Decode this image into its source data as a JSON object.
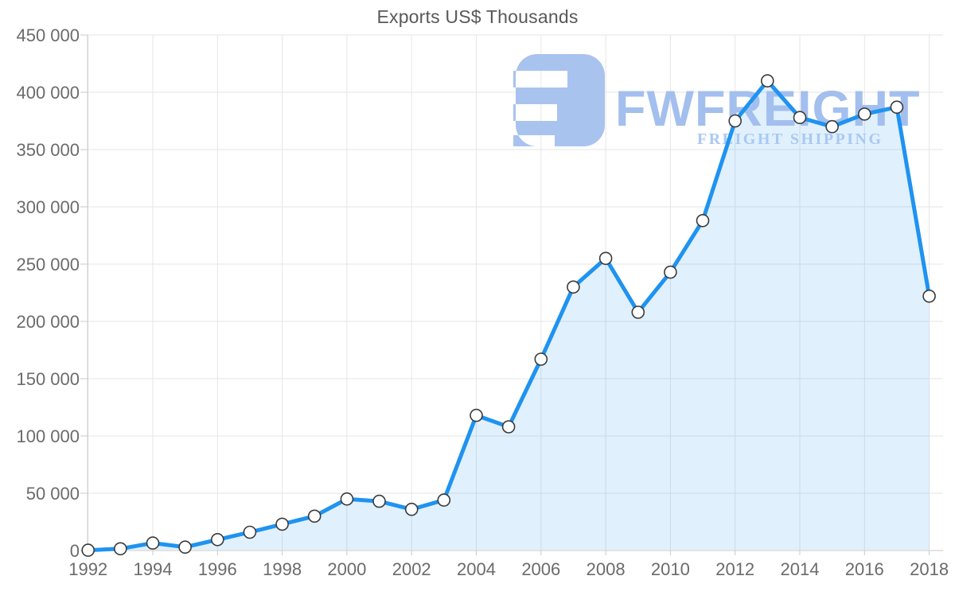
{
  "title": "Exports US$ Thousands",
  "watermark": {
    "wordmark": "FWFREIGHT",
    "tagline": "FREIGHT SHIPPING",
    "icon": "fwfreight-logo-mark",
    "mark_color": "#a9c3ef",
    "wordmark_color": "#a3bfee",
    "tagline_color": "#a9c9f3"
  },
  "chart_data": {
    "type": "area",
    "title": "Exports US$ Thousands",
    "series_name": "Exports US$ Thousands",
    "x": [
      1992,
      1993,
      1994,
      1995,
      1996,
      1997,
      1998,
      1999,
      2000,
      2001,
      2002,
      2003,
      2004,
      2005,
      2006,
      2007,
      2008,
      2009,
      2010,
      2011,
      2012,
      2013,
      2014,
      2015,
      2016,
      2017,
      2018
    ],
    "values": [
      300,
      1500,
      6500,
      3000,
      9500,
      16000,
      23000,
      30000,
      45000,
      43000,
      36000,
      44000,
      118000,
      108000,
      167000,
      230000,
      255000,
      208000,
      243000,
      288000,
      375000,
      410000,
      378000,
      370000,
      381000,
      387000,
      222000
    ],
    "xlabel": "",
    "ylabel": "",
    "xlim": [
      1992,
      2018
    ],
    "ylim": [
      0,
      450000
    ],
    "ytick_interval": 50000,
    "xtick_interval": 2,
    "grid": true,
    "legend": false,
    "marker": "circle",
    "line_color": "#1f93f0",
    "fill_color": "rgba(33,150,243,0.14)",
    "marker_fill": "#ffffff",
    "marker_stroke": "#3a3a3a",
    "grid_color": "#e6e6e6",
    "axis_color": "#c9c9c9",
    "tick_label_color": "#6b6b6b",
    "title_color": "#595959"
  }
}
